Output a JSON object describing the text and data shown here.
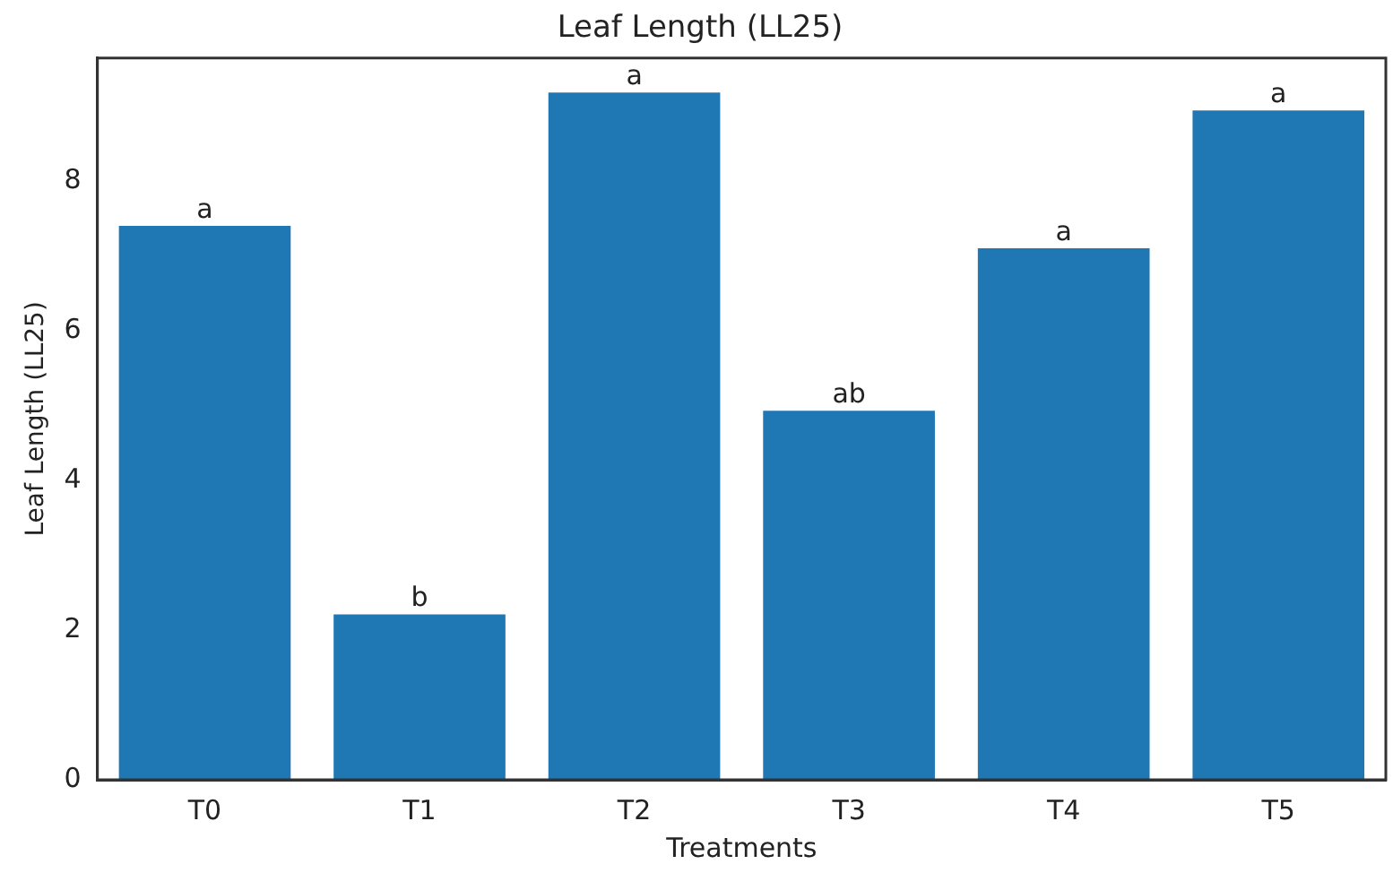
{
  "chart_data": {
    "type": "bar",
    "title": "Leaf Length (LL25)",
    "xlabel": "Treatments",
    "ylabel": "Leaf Length (LL25)",
    "categories": [
      "T0",
      "T1",
      "T2",
      "T3",
      "T4",
      "T5"
    ],
    "values": [
      7.4,
      2.21,
      9.18,
      4.93,
      7.1,
      8.94
    ],
    "color": "#1f77b4",
    "ylim": [
      0,
      9.64
    ],
    "yticks": [
      0,
      2,
      4,
      6,
      8
    ],
    "grid": false,
    "legend": false,
    "annotations": [
      {
        "text": "a",
        "x": "T0",
        "y": 7.4
      },
      {
        "text": "b",
        "x": "T1",
        "y": 2.21
      },
      {
        "text": "a",
        "x": "T2",
        "y": 9.18
      },
      {
        "text": "ab",
        "x": "T3",
        "y": 4.93
      },
      {
        "text": "a",
        "x": "T4",
        "y": 7.1
      },
      {
        "text": "a",
        "x": "T5",
        "y": 8.94
      }
    ]
  }
}
